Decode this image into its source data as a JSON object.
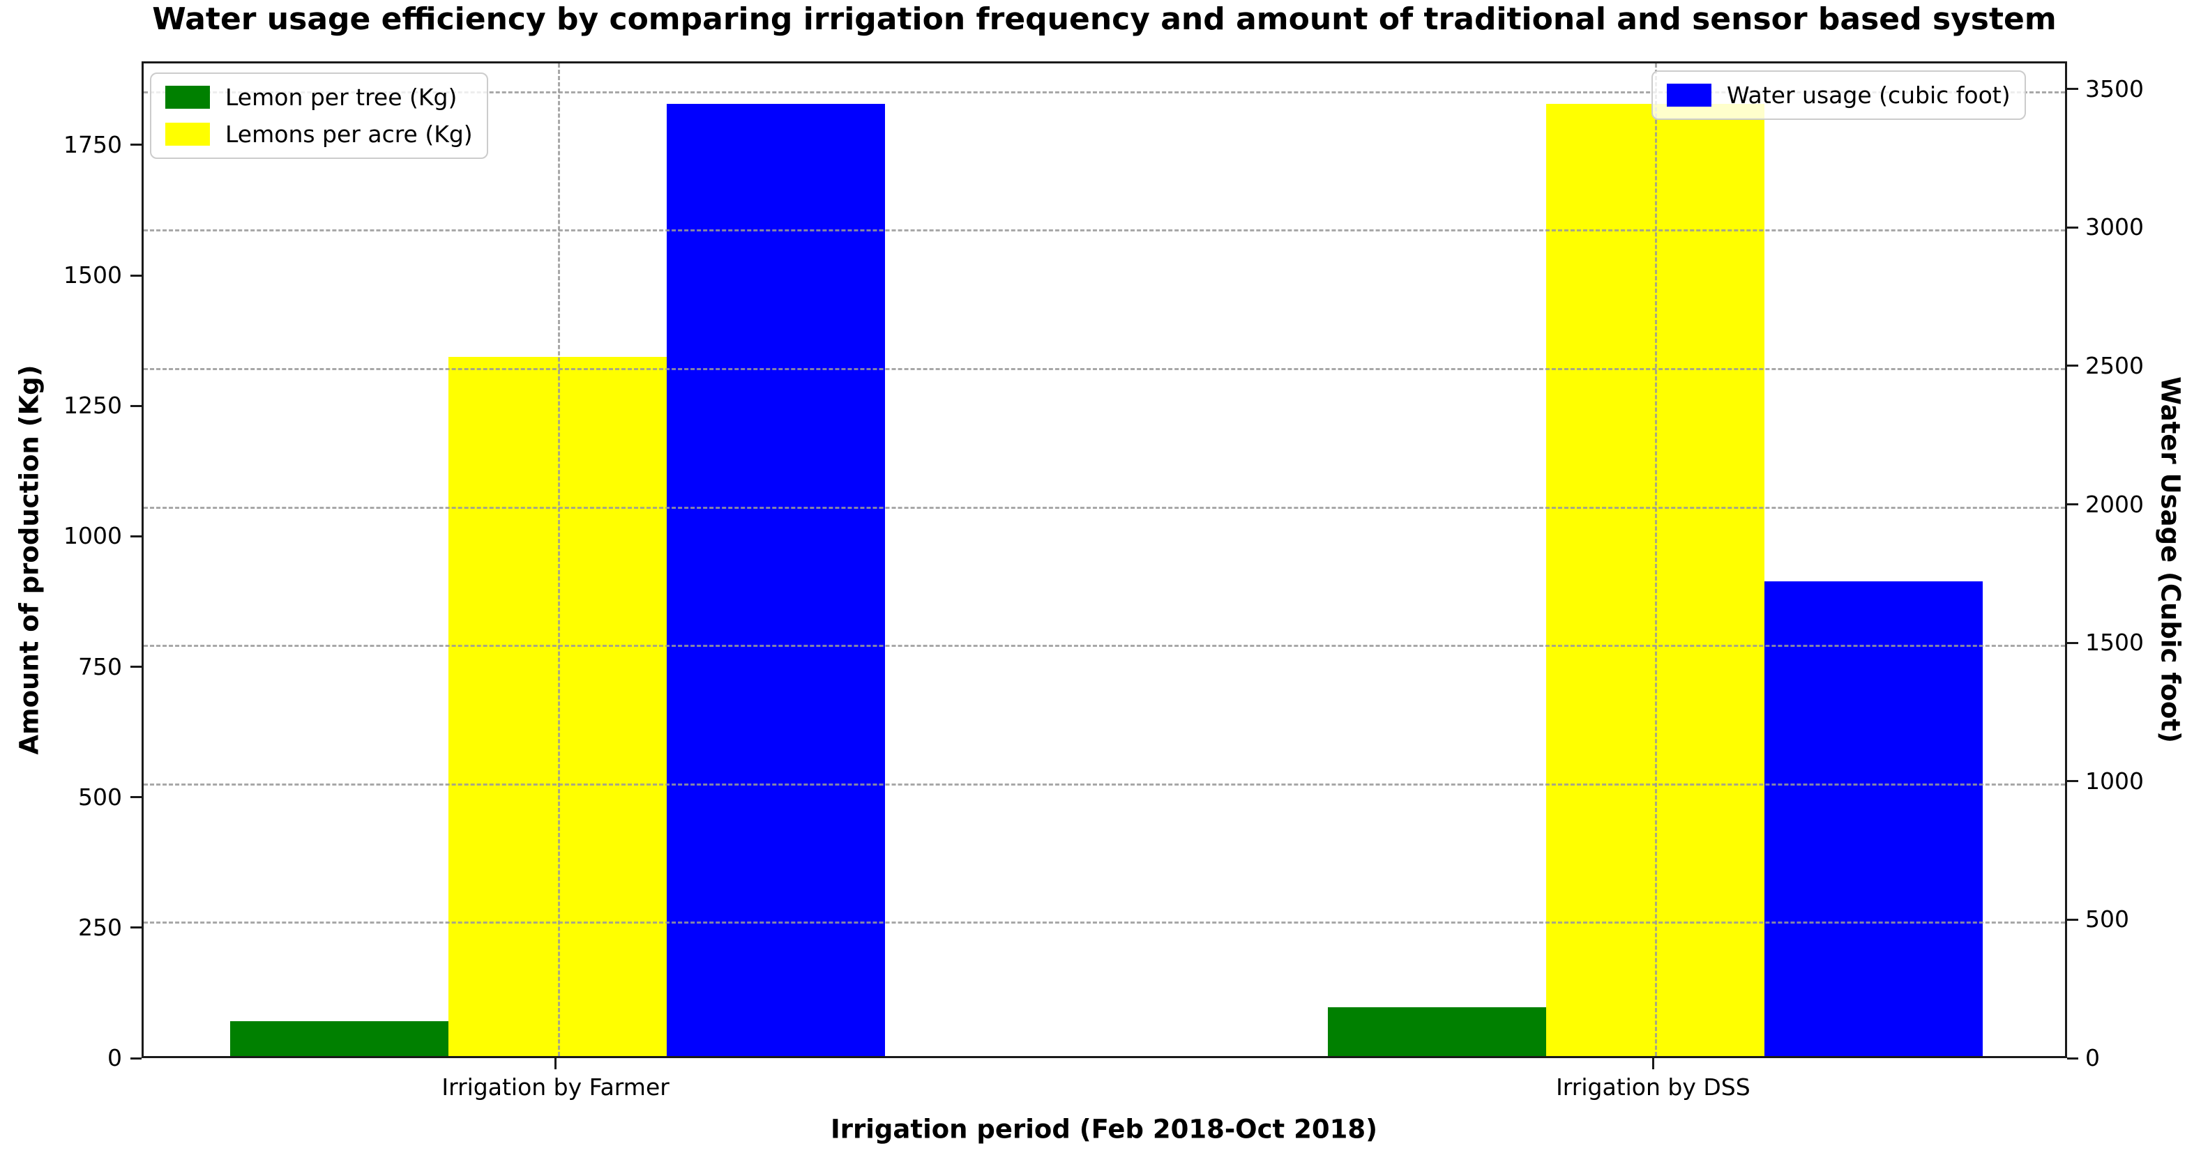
{
  "title": "Water usage efficiency by comparing irrigation frequency and amount of traditional and sensor based system",
  "chart_data": {
    "type": "bar",
    "categories": [
      "Irrigation by Farmer",
      "Irrigation by DSS"
    ],
    "series": [
      {
        "name": "Lemon per tree (Kg)",
        "axis": "left",
        "color": "#008000",
        "values": [
          67,
          93
        ]
      },
      {
        "name": "Lemons per acre (Kg)",
        "axis": "left",
        "color": "#ffff00",
        "values": [
          1340,
          1825
        ]
      },
      {
        "name": "Water usage (cubic foot)",
        "axis": "right",
        "color": "#0000ff",
        "values": [
          3440,
          1715
        ]
      }
    ],
    "title": "Water usage efficiency by comparing irrigation frequency and amount of traditional and sensor based system",
    "xlabel": "Irrigation period (Feb 2018-Oct 2018)",
    "left_ylabel": "Amount of production (Kg)",
    "right_ylabel": "Water Usage (Cubic foot)",
    "left_ylim": [
      0,
      1910
    ],
    "right_ylim": [
      0,
      3600
    ],
    "left_ticks": [
      0,
      250,
      500,
      750,
      1000,
      1250,
      1500,
      1750
    ],
    "right_ticks": [
      0,
      500,
      1000,
      1500,
      2000,
      2500,
      3000,
      3500
    ],
    "grid": "dashed gray; horizontal lines at right-axis ticks, vertical lines at category centers, drawn above bars",
    "legend_left_entries": [
      "Lemon per tree (Kg)",
      "Lemons per acre (Kg)"
    ],
    "legend_right_entries": [
      "Water usage (cubic foot)"
    ],
    "legend_position": "left legend upper-left, right legend upper-right",
    "group_centers_frac": [
      0.215,
      0.785
    ],
    "bar_width_frac": 0.1134
  },
  "colors": {
    "green_bar": "#008000",
    "yellow_bar": "#ffff00",
    "blue_bar": "#0000ff",
    "gridline": "#9a9a9a",
    "spine": "#1a1a1a",
    "background": "#ffffff"
  }
}
